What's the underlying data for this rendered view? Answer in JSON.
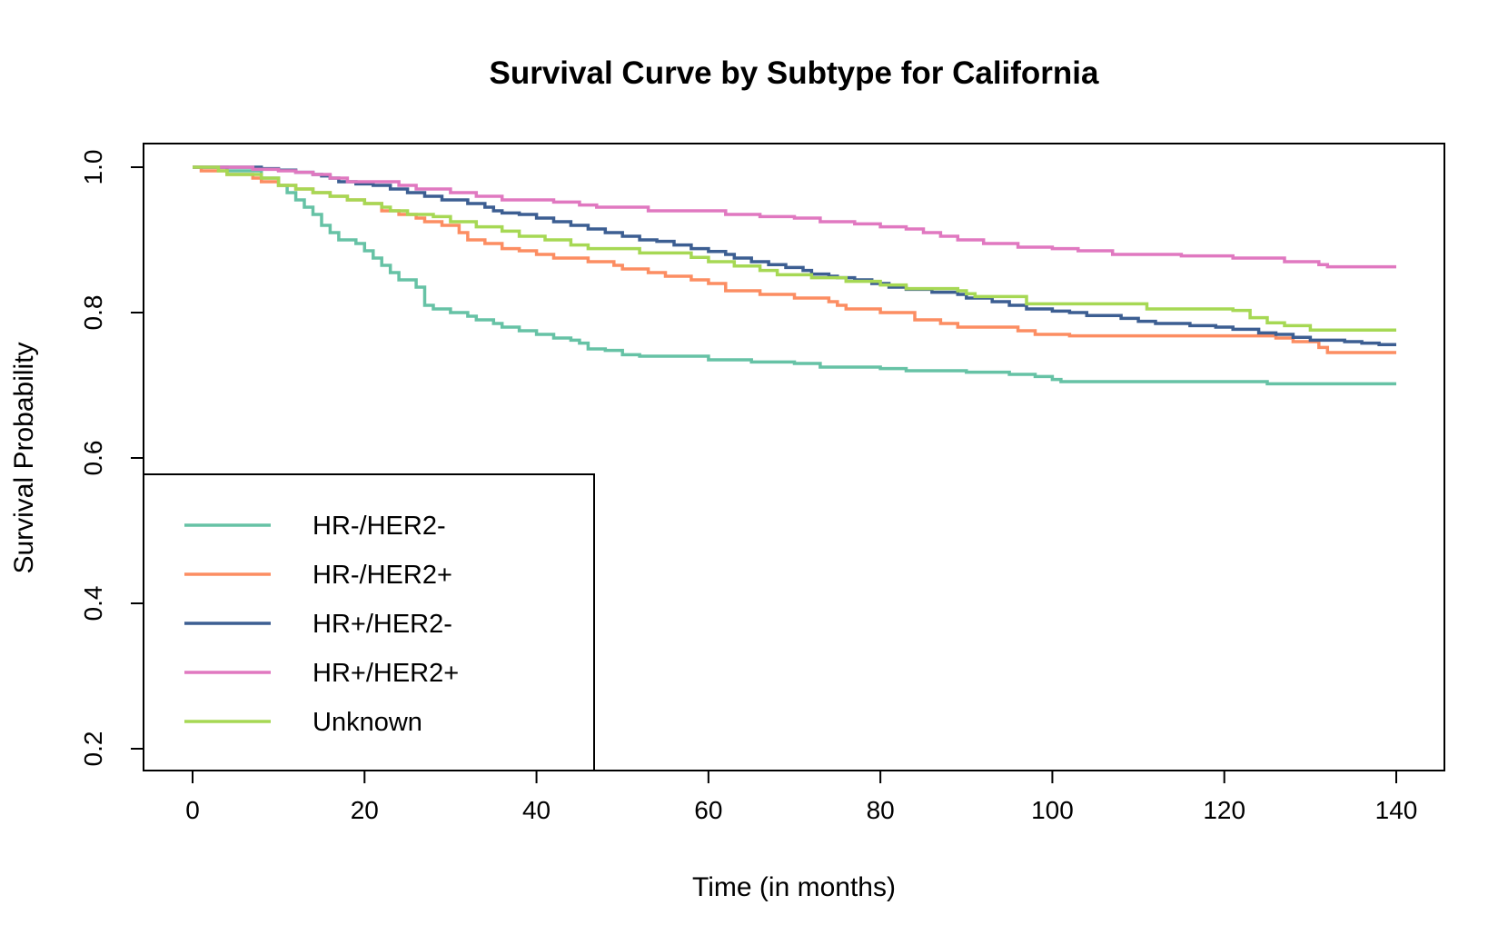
{
  "chart_data": {
    "type": "line",
    "title": "Survival Curve by Subtype for California",
    "xlabel": "Time (in months)",
    "ylabel": "Survival Probability",
    "xlim": [
      0,
      140
    ],
    "ylim": [
      0.2,
      1.0
    ],
    "xticks": [
      0,
      20,
      40,
      60,
      80,
      100,
      120,
      140
    ],
    "xtick_labels": [
      "0",
      "20",
      "40",
      "60",
      "80",
      "100",
      "120",
      "140"
    ],
    "yticks": [
      0.2,
      0.4,
      0.6,
      0.8,
      1.0
    ],
    "ytick_labels": [
      "0.2",
      "0.4",
      "0.6",
      "0.8",
      "1.0"
    ],
    "grid": false,
    "legend_position": "bottom-left",
    "step": true,
    "series": [
      {
        "name": "HR-/HER2-",
        "color": "#66c2a5",
        "points": [
          [
            0,
            1.0
          ],
          [
            4,
            0.995
          ],
          [
            8,
            0.985
          ],
          [
            10,
            0.975
          ],
          [
            11,
            0.965
          ],
          [
            12,
            0.955
          ],
          [
            13,
            0.945
          ],
          [
            14,
            0.935
          ],
          [
            15,
            0.92
          ],
          [
            16,
            0.91
          ],
          [
            17,
            0.9
          ],
          [
            19,
            0.895
          ],
          [
            20,
            0.885
          ],
          [
            21,
            0.875
          ],
          [
            22,
            0.865
          ],
          [
            23,
            0.855
          ],
          [
            24,
            0.845
          ],
          [
            26,
            0.835
          ],
          [
            27,
            0.81
          ],
          [
            28,
            0.805
          ],
          [
            30,
            0.8
          ],
          [
            32,
            0.795
          ],
          [
            33,
            0.79
          ],
          [
            35,
            0.785
          ],
          [
            36,
            0.78
          ],
          [
            38,
            0.775
          ],
          [
            40,
            0.77
          ],
          [
            42,
            0.765
          ],
          [
            44,
            0.762
          ],
          [
            45,
            0.758
          ],
          [
            46,
            0.75
          ],
          [
            48,
            0.748
          ],
          [
            50,
            0.742
          ],
          [
            52,
            0.74
          ],
          [
            60,
            0.735
          ],
          [
            65,
            0.732
          ],
          [
            70,
            0.73
          ],
          [
            73,
            0.725
          ],
          [
            80,
            0.723
          ],
          [
            83,
            0.72
          ],
          [
            90,
            0.718
          ],
          [
            95,
            0.715
          ],
          [
            98,
            0.712
          ],
          [
            100,
            0.708
          ],
          [
            101,
            0.705
          ],
          [
            110,
            0.705
          ],
          [
            125,
            0.702
          ],
          [
            140,
            0.702
          ]
        ]
      },
      {
        "name": "HR-/HER2+",
        "color": "#fc8d62",
        "points": [
          [
            0,
            1.0
          ],
          [
            1,
            0.995
          ],
          [
            4,
            0.99
          ],
          [
            7,
            0.985
          ],
          [
            8,
            0.98
          ],
          [
            10,
            0.975
          ],
          [
            12,
            0.97
          ],
          [
            14,
            0.965
          ],
          [
            16,
            0.96
          ],
          [
            18,
            0.955
          ],
          [
            20,
            0.95
          ],
          [
            22,
            0.94
          ],
          [
            24,
            0.935
          ],
          [
            26,
            0.93
          ],
          [
            27,
            0.925
          ],
          [
            29,
            0.92
          ],
          [
            31,
            0.91
          ],
          [
            32,
            0.9
          ],
          [
            34,
            0.895
          ],
          [
            36,
            0.888
          ],
          [
            38,
            0.885
          ],
          [
            40,
            0.88
          ],
          [
            42,
            0.875
          ],
          [
            46,
            0.87
          ],
          [
            49,
            0.865
          ],
          [
            50,
            0.86
          ],
          [
            53,
            0.855
          ],
          [
            55,
            0.85
          ],
          [
            58,
            0.845
          ],
          [
            60,
            0.84
          ],
          [
            62,
            0.83
          ],
          [
            66,
            0.825
          ],
          [
            70,
            0.82
          ],
          [
            74,
            0.815
          ],
          [
            75,
            0.81
          ],
          [
            76,
            0.805
          ],
          [
            80,
            0.8
          ],
          [
            84,
            0.79
          ],
          [
            87,
            0.785
          ],
          [
            89,
            0.78
          ],
          [
            96,
            0.775
          ],
          [
            98,
            0.77
          ],
          [
            102,
            0.768
          ],
          [
            120,
            0.768
          ],
          [
            126,
            0.765
          ],
          [
            128,
            0.76
          ],
          [
            131,
            0.752
          ],
          [
            132,
            0.745
          ],
          [
            140,
            0.745
          ]
        ]
      },
      {
        "name": "HR+/HER2-",
        "color": "#3c5e92",
        "points": [
          [
            0,
            1.0
          ],
          [
            7,
            1.0
          ],
          [
            8,
            0.998
          ],
          [
            10,
            0.996
          ],
          [
            12,
            0.993
          ],
          [
            14,
            0.99
          ],
          [
            15,
            0.988
          ],
          [
            16,
            0.985
          ],
          [
            17,
            0.98
          ],
          [
            19,
            0.977
          ],
          [
            21,
            0.975
          ],
          [
            23,
            0.97
          ],
          [
            25,
            0.965
          ],
          [
            27,
            0.96
          ],
          [
            29,
            0.955
          ],
          [
            32,
            0.95
          ],
          [
            34,
            0.945
          ],
          [
            35,
            0.94
          ],
          [
            36,
            0.937
          ],
          [
            38,
            0.935
          ],
          [
            40,
            0.93
          ],
          [
            42,
            0.925
          ],
          [
            44,
            0.92
          ],
          [
            46,
            0.915
          ],
          [
            48,
            0.91
          ],
          [
            50,
            0.905
          ],
          [
            52,
            0.9
          ],
          [
            54,
            0.898
          ],
          [
            56,
            0.893
          ],
          [
            58,
            0.888
          ],
          [
            60,
            0.884
          ],
          [
            62,
            0.88
          ],
          [
            63,
            0.875
          ],
          [
            65,
            0.87
          ],
          [
            67,
            0.866
          ],
          [
            69,
            0.862
          ],
          [
            71,
            0.858
          ],
          [
            72,
            0.853
          ],
          [
            74,
            0.85
          ],
          [
            75,
            0.848
          ],
          [
            77,
            0.845
          ],
          [
            79,
            0.84
          ],
          [
            81,
            0.835
          ],
          [
            83,
            0.832
          ],
          [
            86,
            0.828
          ],
          [
            89,
            0.825
          ],
          [
            90,
            0.82
          ],
          [
            93,
            0.815
          ],
          [
            95,
            0.81
          ],
          [
            97,
            0.805
          ],
          [
            100,
            0.802
          ],
          [
            102,
            0.8
          ],
          [
            104,
            0.796
          ],
          [
            108,
            0.792
          ],
          [
            110,
            0.788
          ],
          [
            112,
            0.785
          ],
          [
            116,
            0.782
          ],
          [
            119,
            0.78
          ],
          [
            121,
            0.777
          ],
          [
            124,
            0.772
          ],
          [
            126,
            0.77
          ],
          [
            128,
            0.766
          ],
          [
            130,
            0.762
          ],
          [
            134,
            0.76
          ],
          [
            136,
            0.758
          ],
          [
            138,
            0.756
          ],
          [
            140,
            0.756
          ]
        ]
      },
      {
        "name": "HR+/HER2+",
        "color": "#e078c0",
        "points": [
          [
            0,
            1.0
          ],
          [
            7,
            0.997
          ],
          [
            10,
            0.995
          ],
          [
            12,
            0.993
          ],
          [
            14,
            0.99
          ],
          [
            16,
            0.985
          ],
          [
            18,
            0.98
          ],
          [
            24,
            0.975
          ],
          [
            26,
            0.97
          ],
          [
            30,
            0.965
          ],
          [
            33,
            0.96
          ],
          [
            36,
            0.955
          ],
          [
            42,
            0.952
          ],
          [
            45,
            0.948
          ],
          [
            47,
            0.945
          ],
          [
            53,
            0.94
          ],
          [
            62,
            0.935
          ],
          [
            66,
            0.932
          ],
          [
            70,
            0.93
          ],
          [
            73,
            0.925
          ],
          [
            77,
            0.922
          ],
          [
            80,
            0.918
          ],
          [
            83,
            0.915
          ],
          [
            85,
            0.91
          ],
          [
            87,
            0.905
          ],
          [
            89,
            0.9
          ],
          [
            92,
            0.895
          ],
          [
            96,
            0.89
          ],
          [
            100,
            0.888
          ],
          [
            103,
            0.885
          ],
          [
            107,
            0.88
          ],
          [
            115,
            0.878
          ],
          [
            121,
            0.875
          ],
          [
            127,
            0.87
          ],
          [
            131,
            0.866
          ],
          [
            132,
            0.863
          ],
          [
            140,
            0.863
          ]
        ]
      },
      {
        "name": "Unknown",
        "color": "#a6d854",
        "points": [
          [
            0,
            1.0
          ],
          [
            3,
            0.995
          ],
          [
            4,
            0.99
          ],
          [
            8,
            0.985
          ],
          [
            10,
            0.975
          ],
          [
            12,
            0.97
          ],
          [
            14,
            0.965
          ],
          [
            16,
            0.96
          ],
          [
            18,
            0.955
          ],
          [
            20,
            0.95
          ],
          [
            22,
            0.945
          ],
          [
            23,
            0.94
          ],
          [
            25,
            0.935
          ],
          [
            28,
            0.932
          ],
          [
            30,
            0.925
          ],
          [
            33,
            0.918
          ],
          [
            36,
            0.912
          ],
          [
            38,
            0.905
          ],
          [
            41,
            0.9
          ],
          [
            44,
            0.893
          ],
          [
            46,
            0.888
          ],
          [
            52,
            0.882
          ],
          [
            58,
            0.876
          ],
          [
            60,
            0.87
          ],
          [
            63,
            0.864
          ],
          [
            66,
            0.858
          ],
          [
            68,
            0.852
          ],
          [
            72,
            0.848
          ],
          [
            76,
            0.843
          ],
          [
            80,
            0.838
          ],
          [
            83,
            0.833
          ],
          [
            89,
            0.83
          ],
          [
            90,
            0.826
          ],
          [
            91,
            0.822
          ],
          [
            97,
            0.812
          ],
          [
            111,
            0.805
          ],
          [
            121,
            0.803
          ],
          [
            123,
            0.793
          ],
          [
            125,
            0.786
          ],
          [
            127,
            0.782
          ],
          [
            130,
            0.776
          ],
          [
            140,
            0.776
          ]
        ]
      }
    ]
  }
}
